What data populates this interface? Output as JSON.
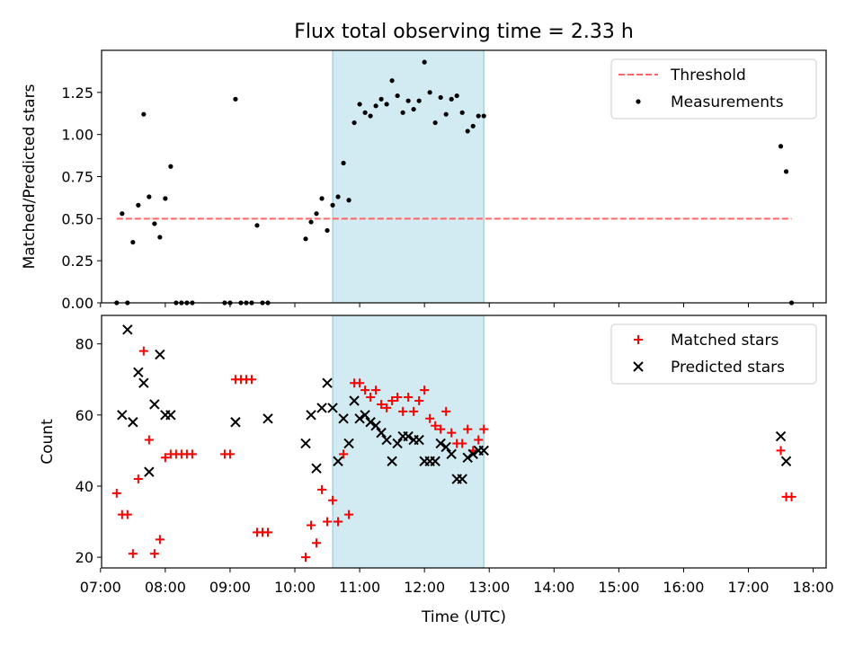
{
  "chart_data": {
    "title": "Flux total observing time = 2.33 h",
    "xlabel": "Time (UTC)",
    "xlim": [
      "07:01",
      "18:12"
    ],
    "xticks": [
      "07:00",
      "08:00",
      "09:00",
      "10:00",
      "11:00",
      "12:00",
      "13:00",
      "14:00",
      "15:00",
      "16:00",
      "17:00",
      "18:00"
    ],
    "highlight_window": {
      "start": "10:35",
      "end": "12:55",
      "color": "#add8e6"
    },
    "panels": [
      {
        "type": "scatter",
        "ylabel": "Matched/Predicted stars",
        "ylim": [
          0,
          1.5
        ],
        "yticks": [
          "0.00",
          "0.25",
          "0.50",
          "0.75",
          "1.00",
          "1.25"
        ],
        "legend": {
          "placement": "top-right",
          "entries": [
            "Threshold",
            "Measurements"
          ]
        },
        "threshold": {
          "name": "Threshold",
          "value": 0.5,
          "x_start": "07:15",
          "x_end": "17:40",
          "color": "#ff6666",
          "style": "dashed"
        },
        "series": [
          {
            "name": "Measurements",
            "color": "#000000",
            "marker": "dot",
            "x": [
              "07:15",
              "07:20",
              "07:25",
              "07:30",
              "07:35",
              "07:40",
              "07:45",
              "07:50",
              "07:55",
              "08:00",
              "08:05",
              "08:10",
              "08:15",
              "08:20",
              "08:25",
              "08:55",
              "09:00",
              "09:05",
              "09:10",
              "09:15",
              "09:20",
              "09:25",
              "09:30",
              "09:35",
              "10:10",
              "10:15",
              "10:20",
              "10:25",
              "10:30",
              "10:35",
              "10:40",
              "10:45",
              "10:50",
              "10:55",
              "11:00",
              "11:05",
              "11:10",
              "11:15",
              "11:20",
              "11:25",
              "11:30",
              "11:35",
              "11:40",
              "11:45",
              "11:50",
              "11:55",
              "12:00",
              "12:05",
              "12:10",
              "12:15",
              "12:20",
              "12:25",
              "12:30",
              "12:35",
              "12:40",
              "12:45",
              "12:50",
              "12:55",
              "17:30",
              "17:35",
              "17:40"
            ],
            "y": [
              0.0,
              0.53,
              0.0,
              0.36,
              0.58,
              1.12,
              0.63,
              0.47,
              0.39,
              0.62,
              0.81,
              0.0,
              0.0,
              0.0,
              0.0,
              0.0,
              0.0,
              1.21,
              0.0,
              0.0,
              0.0,
              0.46,
              0.0,
              0.0,
              0.38,
              0.48,
              0.53,
              0.62,
              0.43,
              0.58,
              0.63,
              0.83,
              0.61,
              1.07,
              1.18,
              1.13,
              1.11,
              1.17,
              1.21,
              1.18,
              1.32,
              1.23,
              1.13,
              1.2,
              1.15,
              1.2,
              1.43,
              1.25,
              1.07,
              1.22,
              1.12,
              1.21,
              1.23,
              1.13,
              1.02,
              1.05,
              1.11,
              1.11,
              0.93,
              0.78,
              0.0
            ]
          }
        ]
      },
      {
        "type": "scatter",
        "ylabel": "Count",
        "ylim": [
          17,
          88
        ],
        "yticks": [
          "20",
          "40",
          "60",
          "80"
        ],
        "legend": {
          "placement": "top-right",
          "entries": [
            "Matched stars",
            "Predicted stars"
          ]
        },
        "series": [
          {
            "name": "Matched stars",
            "color": "#ff0000",
            "marker": "plus",
            "x": [
              "07:15",
              "07:20",
              "07:25",
              "07:30",
              "07:35",
              "07:40",
              "07:45",
              "07:50",
              "07:55",
              "08:00",
              "08:05",
              "08:10",
              "08:15",
              "08:20",
              "08:25",
              "08:55",
              "09:00",
              "09:05",
              "09:10",
              "09:15",
              "09:20",
              "09:25",
              "09:30",
              "09:35",
              "10:10",
              "10:15",
              "10:20",
              "10:25",
              "10:30",
              "10:35",
              "10:40",
              "10:45",
              "10:50",
              "10:55",
              "11:00",
              "11:05",
              "11:10",
              "11:15",
              "11:20",
              "11:25",
              "11:30",
              "11:35",
              "11:40",
              "11:45",
              "11:50",
              "11:55",
              "12:00",
              "12:05",
              "12:10",
              "12:15",
              "12:20",
              "12:25",
              "12:30",
              "12:35",
              "12:40",
              "12:45",
              "12:50",
              "12:55",
              "17:30",
              "17:35",
              "17:40"
            ],
            "y": [
              38,
              32,
              32,
              21,
              42,
              78,
              53,
              21,
              25,
              48,
              49,
              49,
              49,
              49,
              49,
              49,
              49,
              70,
              70,
              70,
              70,
              27,
              27,
              27,
              20,
              29,
              24,
              39,
              30,
              36,
              30,
              49,
              32,
              69,
              69,
              67,
              65,
              67,
              63,
              62,
              64,
              65,
              61,
              65,
              61,
              64,
              67,
              59,
              57,
              56,
              61,
              55,
              52,
              52,
              56,
              50,
              53,
              56,
              50,
              37,
              37
            ]
          },
          {
            "name": "Predicted stars",
            "color": "#000000",
            "marker": "x",
            "x": [
              "07:20",
              "07:25",
              "07:30",
              "07:35",
              "07:40",
              "07:45",
              "07:50",
              "07:55",
              "08:00",
              "08:05",
              "09:05",
              "09:35",
              "10:10",
              "10:15",
              "10:20",
              "10:25",
              "10:30",
              "10:35",
              "10:40",
              "10:45",
              "10:50",
              "10:55",
              "11:00",
              "11:05",
              "11:10",
              "11:15",
              "11:20",
              "11:25",
              "11:30",
              "11:35",
              "11:40",
              "11:45",
              "11:50",
              "11:55",
              "12:00",
              "12:05",
              "12:10",
              "12:15",
              "12:20",
              "12:25",
              "12:30",
              "12:35",
              "12:40",
              "12:45",
              "12:50",
              "12:55",
              "17:30",
              "17:35"
            ],
            "y": [
              60,
              84,
              58,
              72,
              69,
              44,
              63,
              77,
              60,
              60,
              58,
              59,
              52,
              60,
              45,
              62,
              69,
              62,
              47,
              59,
              52,
              64,
              59,
              60,
              58,
              57,
              55,
              53,
              47,
              52,
              54,
              54,
              53,
              53,
              47,
              47,
              47,
              52,
              51,
              49,
              42,
              42,
              48,
              49,
              50,
              50,
              54,
              47
            ]
          }
        ]
      }
    ]
  }
}
